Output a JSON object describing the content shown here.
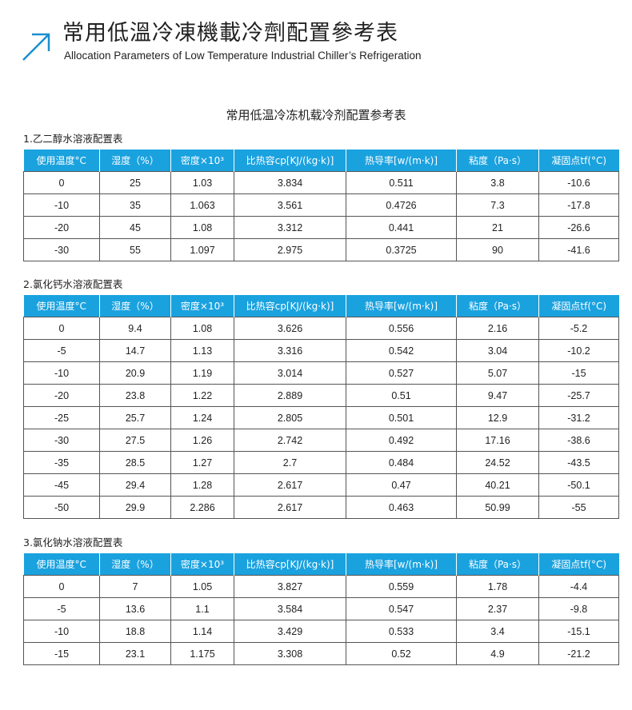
{
  "header": {
    "title_cn": "常用低溫冷凍機載冷劑配置參考表",
    "title_en": "Allocation Parameters of Low Temperature Industrial Chiller’s Refrigeration",
    "accent": "#1a8fd0"
  },
  "main_title": "常用低温冷冻机载冷剂配置参考表",
  "columns": [
    "使用温度°C",
    "湿度（%）",
    "密度×10³",
    "比热容cp[KJ/(kg·k)]",
    "热导率[w/(m·k)]",
    "粘度（Pa·s）",
    "凝固点tf(°C)"
  ],
  "header_color": "#1aa2df",
  "tables": [
    {
      "title": "1.乙二醇水溶液配置表",
      "rows": [
        [
          "0",
          "25",
          "1.03",
          "3.834",
          "0.511",
          "3.8",
          "-10.6"
        ],
        [
          "-10",
          "35",
          "1.063",
          "3.561",
          "0.4726",
          "7.3",
          "-17.8"
        ],
        [
          "-20",
          "45",
          "1.08",
          "3.312",
          "0.441",
          "21",
          "-26.6"
        ],
        [
          "-30",
          "55",
          "1.097",
          "2.975",
          "0.3725",
          "90",
          "-41.6"
        ]
      ]
    },
    {
      "title": "2.氯化钙水溶液配置表",
      "rows": [
        [
          "0",
          "9.4",
          "1.08",
          "3.626",
          "0.556",
          "2.16",
          "-5.2"
        ],
        [
          "-5",
          "14.7",
          "1.13",
          "3.316",
          "0.542",
          "3.04",
          "-10.2"
        ],
        [
          "-10",
          "20.9",
          "1.19",
          "3.014",
          "0.527",
          "5.07",
          "-15"
        ],
        [
          "-20",
          "23.8",
          "1.22",
          "2.889",
          "0.51",
          "9.47",
          "-25.7"
        ],
        [
          "-25",
          "25.7",
          "1.24",
          "2.805",
          "0.501",
          "12.9",
          "-31.2"
        ],
        [
          "-30",
          "27.5",
          "1.26",
          "2.742",
          "0.492",
          "17.16",
          "-38.6"
        ],
        [
          "-35",
          "28.5",
          "1.27",
          "2.7",
          "0.484",
          "24.52",
          "-43.5"
        ],
        [
          "-45",
          "29.4",
          "1.28",
          "2.617",
          "0.47",
          "40.21",
          "-50.1"
        ],
        [
          "-50",
          "29.9",
          "2.286",
          "2.617",
          "0.463",
          "50.99",
          "-55"
        ]
      ]
    },
    {
      "title": "3.氯化钠水溶液配置表",
      "rows": [
        [
          "0",
          "7",
          "1.05",
          "3.827",
          "0.559",
          "1.78",
          "-4.4"
        ],
        [
          "-5",
          "13.6",
          "1.1",
          "3.584",
          "0.547",
          "2.37",
          "-9.8"
        ],
        [
          "-10",
          "18.8",
          "1.14",
          "3.429",
          "0.533",
          "3.4",
          "-15.1"
        ],
        [
          "-15",
          "23.1",
          "1.175",
          "3.308",
          "0.52",
          "4.9",
          "-21.2"
        ]
      ]
    }
  ]
}
